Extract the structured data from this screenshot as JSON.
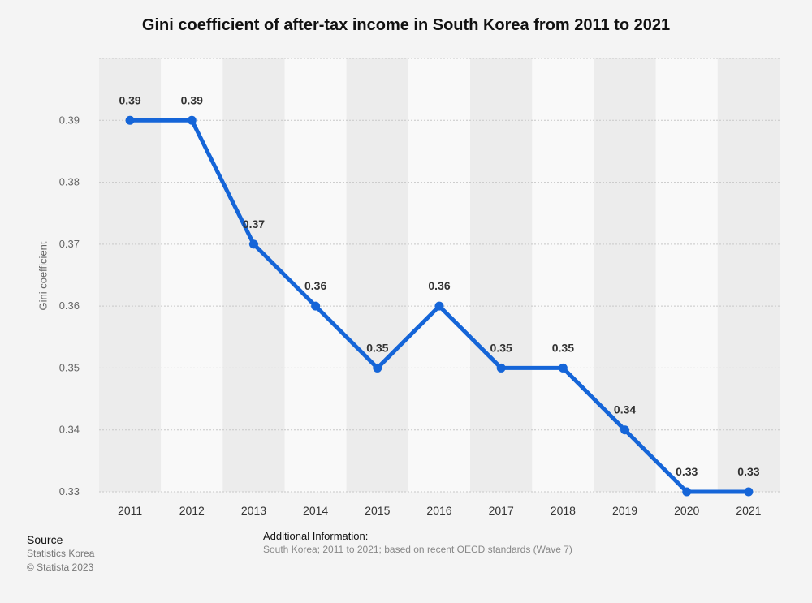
{
  "title": "Gini coefficient of after-tax income in South Korea from 2011 to 2021",
  "source": {
    "heading": "Source",
    "line1": "Statistics Korea",
    "line2": "© Statista 2023"
  },
  "additional_info": {
    "heading": "Additional Information:",
    "text": "South Korea; 2011 to 2021; based on recent OECD standards (Wave 7)"
  },
  "colors": {
    "line": "#1565d8",
    "grid": "#c8c8c8",
    "band": "#ececec",
    "band_alt": "#f9f9f9"
  },
  "chart_data": {
    "type": "line",
    "title": "Gini coefficient of after-tax income in South Korea from 2011 to 2021",
    "xlabel": "",
    "ylabel": "Gini coefficient",
    "categories": [
      "2011",
      "2012",
      "2013",
      "2014",
      "2015",
      "2016",
      "2017",
      "2018",
      "2019",
      "2020",
      "2021"
    ],
    "values": [
      0.39,
      0.39,
      0.37,
      0.36,
      0.35,
      0.36,
      0.35,
      0.35,
      0.34,
      0.33,
      0.33
    ],
    "data_labels": [
      "0.39",
      "0.39",
      "0.37",
      "0.36",
      "0.35",
      "0.36",
      "0.35",
      "0.35",
      "0.34",
      "0.33",
      "0.33"
    ],
    "y_ticks": [
      "0.33",
      "0.34",
      "0.35",
      "0.36",
      "0.37",
      "0.38",
      "0.39"
    ],
    "ylim": [
      0.33,
      0.4
    ],
    "grid": true,
    "legend": "none"
  }
}
